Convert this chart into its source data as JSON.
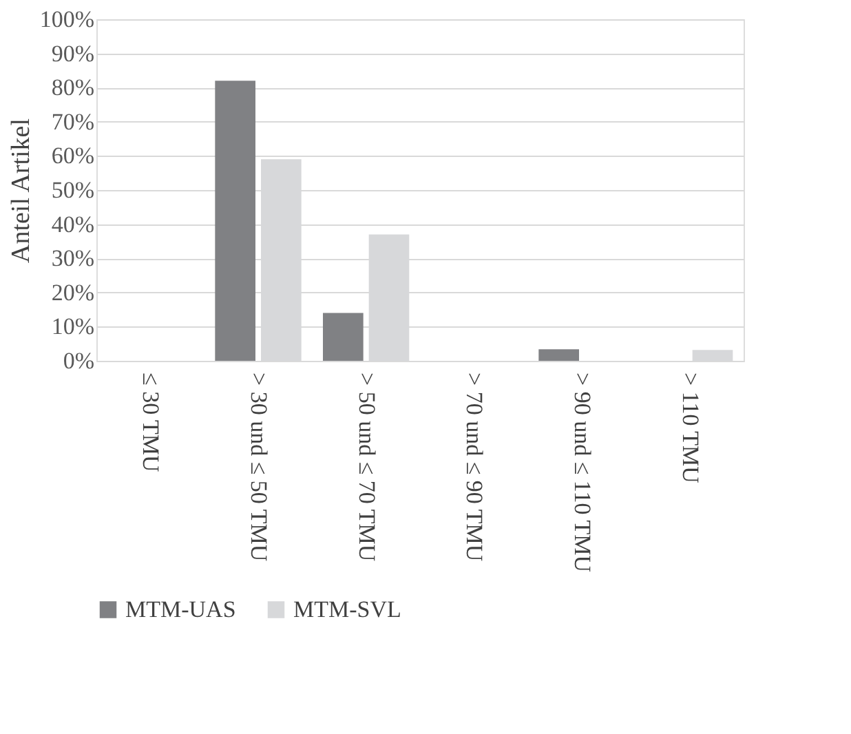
{
  "chart_data": {
    "type": "bar",
    "ylabel": "Anteil Artikel",
    "categories": [
      "≤ 30 TMU",
      "> 30 und ≤ 50 TMU",
      "> 50 und ≤ 70 TMU",
      "> 70 und ≤ 90 TMU",
      "> 90 und ≤ 110 TMU",
      "> 110 TMU"
    ],
    "series": [
      {
        "name": "MTM-UAS",
        "color": "#808184",
        "values": [
          0,
          82,
          14,
          0,
          3.4,
          0
        ]
      },
      {
        "name": "MTM-SVL",
        "color": "#d7d8da",
        "values": [
          0,
          59,
          37,
          0,
          0,
          3.2
        ]
      }
    ],
    "ylim": [
      0,
      100
    ],
    "yticks": [
      {
        "value": 0,
        "label": "0%"
      },
      {
        "value": 10,
        "label": "10%"
      },
      {
        "value": 20,
        "label": "20%"
      },
      {
        "value": 30,
        "label": "30%"
      },
      {
        "value": 40,
        "label": "40%"
      },
      {
        "value": 50,
        "label": "50%"
      },
      {
        "value": 60,
        "label": "60%"
      },
      {
        "value": 70,
        "label": "70%"
      },
      {
        "value": 80,
        "label": "80%"
      },
      {
        "value": 90,
        "label": "90%"
      },
      {
        "value": 100,
        "label": "100%"
      }
    ],
    "grid": "y",
    "legend": "bottom"
  }
}
